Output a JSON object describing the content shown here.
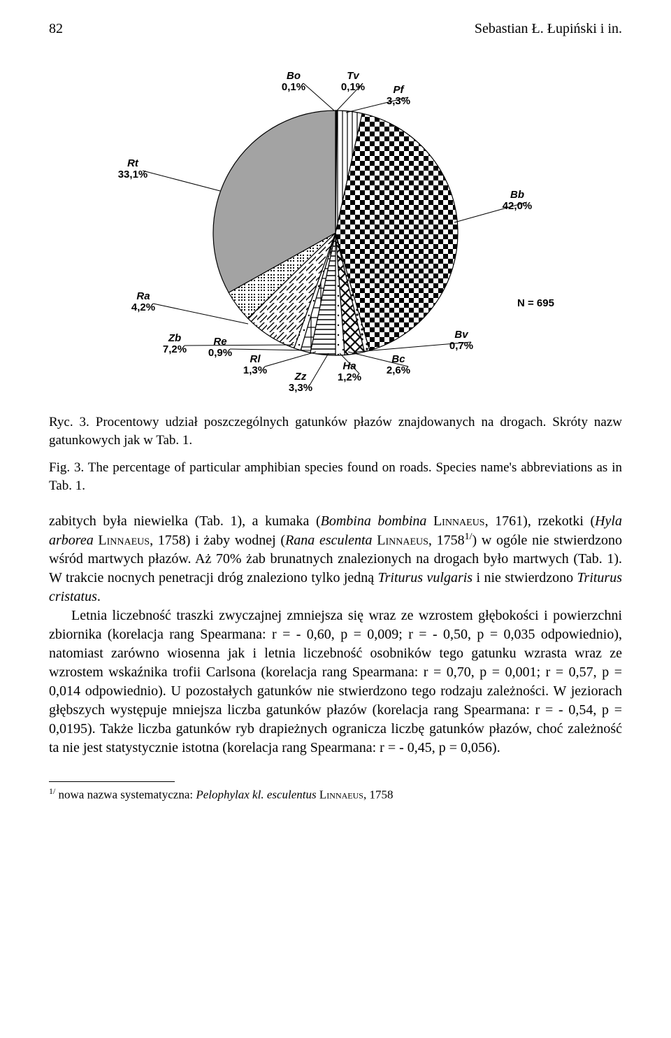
{
  "page": {
    "number": "82",
    "running_head": "Sebastian Ł. Łupiński i in."
  },
  "chart": {
    "type": "pie",
    "n_label": "N = 695",
    "background_color": "#ffffff",
    "slices": [
      {
        "key": "Bo",
        "label": "Bo",
        "pct_label": "0,1%",
        "value": 0.1
      },
      {
        "key": "Tv",
        "label": "Tv",
        "pct_label": "0,1%",
        "value": 0.1
      },
      {
        "key": "Pf",
        "label": "Pf",
        "pct_label": "3,3%",
        "value": 3.3
      },
      {
        "key": "Bb",
        "label": "Bb",
        "pct_label": "42,0%",
        "value": 42.0
      },
      {
        "key": "Bv",
        "label": "Bv",
        "pct_label": "0,7%",
        "value": 0.7
      },
      {
        "key": "Bc",
        "label": "Bc",
        "pct_label": "2,6%",
        "value": 2.6
      },
      {
        "key": "Ha",
        "label": "Ha",
        "pct_label": "1,2%",
        "value": 1.2
      },
      {
        "key": "Zz",
        "label": "Zz",
        "pct_label": "3,3%",
        "value": 3.3
      },
      {
        "key": "Rl",
        "label": "Rl",
        "pct_label": "1,3%",
        "value": 1.3
      },
      {
        "key": "Re",
        "label": "Re",
        "pct_label": "0,9%",
        "value": 0.9
      },
      {
        "key": "Zb",
        "label": "Zb",
        "pct_label": "7,2%",
        "value": 7.2
      },
      {
        "key": "Ra",
        "label": "Ra",
        "pct_label": "4,2%",
        "value": 4.2
      },
      {
        "key": "Rt",
        "label": "Rt",
        "pct_label": "33,1%",
        "value": 33.1
      }
    ],
    "colors": {
      "slice_stroke": "#000000",
      "Rt_fill": "#a3a3a3",
      "Tv_fill": "#ffffff",
      "Bo_fill": "#ffffff"
    },
    "label_font_family": "Arial",
    "label_font_size_pt": 11
  },
  "caption": {
    "pl_prefix": "Ryc. 3. ",
    "pl_body": "Procentowy udział poszczególnych gatunków płazów znajdowanych na drogach. Skróty nazw gatunkowych jak w Tab. 1.",
    "en_prefix": "Fig. 3. ",
    "en_body": "The percentage of particular amphibian species found on roads. Species name's abbreviations as in Tab. 1."
  },
  "body": {
    "p1_a": "zabitych była niewielka (Tab. 1), a kumaka (",
    "p1_b": "Bombina bombina",
    "p1_c": " L",
    "p1_d": "innaeus",
    "p1_e": ", 1761), rzekotki (",
    "p1_f": "Hyla arborea",
    "p1_g": " L",
    "p1_h": "innaeus",
    "p1_i": ", 1758) i żaby wodnej (",
    "p1_j": "Rana esculenta",
    "p1_k": " L",
    "p1_l": "innaeus",
    "p1_m": ", 1758",
    "p1_n": "1/",
    "p1_o": ") w ogóle nie stwierdzono wśród martwych płazów. Aż 70% żab brunatnych znalezionych na drogach było martwych (Tab. 1). W trakcie nocnych penetracji dróg znaleziono tylko jedną ",
    "p1_p": "Triturus vulgaris",
    "p1_q": " i nie stwierdzono ",
    "p1_r": "Triturus cristatus",
    "p1_s": ".",
    "p2": "Letnia liczebność traszki zwyczajnej zmniejsza się wraz ze wzrostem głębokości i powierzchni zbiornika (korelacja rang Spearmana: r = - 0,60, p =  0,009; r = - 0,50, p = 0,035 odpowiednio), natomiast zarówno wiosenna jak i letnia liczebność osobników tego gatunku wzrasta wraz ze wzrostem wskaźnika trofii Carlsona (korelacja rang Spearmana: r = 0,70, p = 0,001;  r = 0,57, p = 0,014 odpowiednio). U pozostałych gatunków nie stwierdzono tego rodzaju zależności. W jeziorach głębszych występuje mniejsza liczba gatunków płazów (korelacja rang Spearmana: r = - 0,54, p = 0,0195). Także liczba gatunków ryb drapieżnych ogranicza liczbę gatunków płazów, choć zależność ta nie jest statystycznie istotna (korelacja rang Spearmana: r = - 0,45, p = 0,056)."
  },
  "footnote": {
    "mark": "1/",
    "a": " nowa nazwa systematyczna: ",
    "b": "Pelophylax kl. esculentus",
    "c": " L",
    "d": "innaeus",
    "e": ", 1758"
  }
}
